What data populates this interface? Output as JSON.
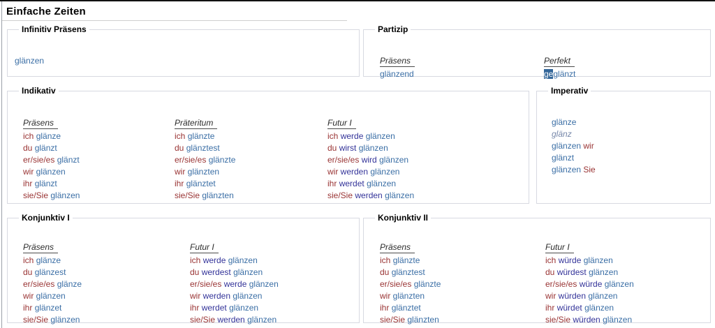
{
  "title": "Einfache Zeiten",
  "colors": {
    "pronoun": "#993333",
    "verb": "#3a6ea5",
    "auxiliary": "#333399",
    "variant": "#7788aa",
    "selection_background": "#336699",
    "selection_text": "#ffffff",
    "header_text": "#2b2b2b",
    "fieldset_border": "#d7d9e1"
  },
  "sections": [
    {
      "id": "infinitiv",
      "legend": "Infinitiv Präsens",
      "columns": [
        {
          "lines": [
            [
              {
                "t": "glänzen",
                "c": "v"
              }
            ]
          ]
        }
      ]
    },
    {
      "id": "partizip",
      "legend": "Partizip",
      "columns": [
        {
          "header": "Präsens",
          "lines": [
            [
              {
                "t": "glänzend",
                "c": "v"
              }
            ]
          ]
        },
        {
          "header": "Perfekt",
          "lines": [
            [
              {
                "t": "ge",
                "c": "sel"
              },
              {
                "t": "glänzt",
                "c": "v",
                "j": true
              }
            ]
          ]
        }
      ]
    },
    {
      "id": "indikativ",
      "legend": "Indikativ",
      "columns": [
        {
          "header": "Präsens",
          "lines": [
            [
              {
                "t": "ich",
                "c": "p"
              },
              {
                "t": "glänze",
                "c": "v"
              }
            ],
            [
              {
                "t": "du",
                "c": "p"
              },
              {
                "t": "glänzt",
                "c": "v"
              }
            ],
            [
              {
                "t": "er/sie/es",
                "c": "p"
              },
              {
                "t": "glänzt",
                "c": "v"
              }
            ],
            [
              {
                "t": "wir",
                "c": "p"
              },
              {
                "t": "glänzen",
                "c": "v"
              }
            ],
            [
              {
                "t": "ihr",
                "c": "p"
              },
              {
                "t": "glänzt",
                "c": "v"
              }
            ],
            [
              {
                "t": "sie/Sie",
                "c": "p"
              },
              {
                "t": "glänzen",
                "c": "v"
              }
            ]
          ]
        },
        {
          "header": "Präteritum",
          "lines": [
            [
              {
                "t": "ich",
                "c": "p"
              },
              {
                "t": "glänzte",
                "c": "v"
              }
            ],
            [
              {
                "t": "du",
                "c": "p"
              },
              {
                "t": "glänztest",
                "c": "v"
              }
            ],
            [
              {
                "t": "er/sie/es",
                "c": "p"
              },
              {
                "t": "glänzte",
                "c": "v"
              }
            ],
            [
              {
                "t": "wir",
                "c": "p"
              },
              {
                "t": "glänzten",
                "c": "v"
              }
            ],
            [
              {
                "t": "ihr",
                "c": "p"
              },
              {
                "t": "glänztet",
                "c": "v"
              }
            ],
            [
              {
                "t": "sie/Sie",
                "c": "p"
              },
              {
                "t": "glänzten",
                "c": "v"
              }
            ]
          ]
        },
        {
          "header": "Futur I",
          "lines": [
            [
              {
                "t": "ich",
                "c": "p"
              },
              {
                "t": "werde",
                "c": "a"
              },
              {
                "t": "glänzen",
                "c": "v"
              }
            ],
            [
              {
                "t": "du",
                "c": "p"
              },
              {
                "t": "wirst",
                "c": "a"
              },
              {
                "t": "glänzen",
                "c": "v"
              }
            ],
            [
              {
                "t": "er/sie/es",
                "c": "p"
              },
              {
                "t": "wird",
                "c": "a"
              },
              {
                "t": "glänzen",
                "c": "v"
              }
            ],
            [
              {
                "t": "wir",
                "c": "p"
              },
              {
                "t": "werden",
                "c": "a"
              },
              {
                "t": "glänzen",
                "c": "v"
              }
            ],
            [
              {
                "t": "ihr",
                "c": "p"
              },
              {
                "t": "werdet",
                "c": "a"
              },
              {
                "t": "glänzen",
                "c": "v"
              }
            ],
            [
              {
                "t": "sie/Sie",
                "c": "p"
              },
              {
                "t": "werden",
                "c": "a"
              },
              {
                "t": "glänzen",
                "c": "v"
              }
            ]
          ]
        }
      ]
    },
    {
      "id": "imperativ",
      "legend": "Imperativ",
      "columns": [
        {
          "lines": [
            [
              {
                "t": "glänze",
                "c": "v"
              }
            ],
            [
              {
                "t": "glänz",
                "c": "vi"
              }
            ],
            [
              {
                "t": "glänzen",
                "c": "v"
              },
              {
                "t": "wir",
                "c": "p"
              }
            ],
            [
              {
                "t": "glänzt",
                "c": "v"
              }
            ],
            [
              {
                "t": "glänzen",
                "c": "v"
              },
              {
                "t": "Sie",
                "c": "p"
              }
            ]
          ]
        }
      ]
    },
    {
      "id": "konjunktiv-i",
      "legend": "Konjunktiv I",
      "columns": [
        {
          "header": "Präsens",
          "lines": [
            [
              {
                "t": "ich",
                "c": "p"
              },
              {
                "t": "glänze",
                "c": "v"
              }
            ],
            [
              {
                "t": "du",
                "c": "p"
              },
              {
                "t": "glänzest",
                "c": "v"
              }
            ],
            [
              {
                "t": "er/sie/es",
                "c": "p"
              },
              {
                "t": "glänze",
                "c": "v"
              }
            ],
            [
              {
                "t": "wir",
                "c": "p"
              },
              {
                "t": "glänzen",
                "c": "v"
              }
            ],
            [
              {
                "t": "ihr",
                "c": "p"
              },
              {
                "t": "glänzet",
                "c": "v"
              }
            ],
            [
              {
                "t": "sie/Sie",
                "c": "p"
              },
              {
                "t": "glänzen",
                "c": "v"
              }
            ]
          ]
        },
        {
          "header": "Futur I",
          "lines": [
            [
              {
                "t": "ich",
                "c": "p"
              },
              {
                "t": "werde",
                "c": "a"
              },
              {
                "t": "glänzen",
                "c": "v"
              }
            ],
            [
              {
                "t": "du",
                "c": "p"
              },
              {
                "t": "werdest",
                "c": "a"
              },
              {
                "t": "glänzen",
                "c": "v"
              }
            ],
            [
              {
                "t": "er/sie/es",
                "c": "p"
              },
              {
                "t": "werde",
                "c": "a"
              },
              {
                "t": "glänzen",
                "c": "v"
              }
            ],
            [
              {
                "t": "wir",
                "c": "p"
              },
              {
                "t": "werden",
                "c": "a"
              },
              {
                "t": "glänzen",
                "c": "v"
              }
            ],
            [
              {
                "t": "ihr",
                "c": "p"
              },
              {
                "t": "werdet",
                "c": "a"
              },
              {
                "t": "glänzen",
                "c": "v"
              }
            ],
            [
              {
                "t": "sie/Sie",
                "c": "p"
              },
              {
                "t": "werden",
                "c": "a"
              },
              {
                "t": "glänzen",
                "c": "v"
              }
            ]
          ]
        }
      ]
    },
    {
      "id": "konjunktiv-ii",
      "legend": "Konjunktiv II",
      "columns": [
        {
          "header": "Präsens",
          "lines": [
            [
              {
                "t": "ich",
                "c": "p"
              },
              {
                "t": "glänzte",
                "c": "v"
              }
            ],
            [
              {
                "t": "du",
                "c": "p"
              },
              {
                "t": "glänztest",
                "c": "v"
              }
            ],
            [
              {
                "t": "er/sie/es",
                "c": "p"
              },
              {
                "t": "glänzte",
                "c": "v"
              }
            ],
            [
              {
                "t": "wir",
                "c": "p"
              },
              {
                "t": "glänzten",
                "c": "v"
              }
            ],
            [
              {
                "t": "ihr",
                "c": "p"
              },
              {
                "t": "glänztet",
                "c": "v"
              }
            ],
            [
              {
                "t": "sie/Sie",
                "c": "p"
              },
              {
                "t": "glänzten",
                "c": "v"
              }
            ]
          ]
        },
        {
          "header": "Futur I",
          "lines": [
            [
              {
                "t": "ich",
                "c": "p"
              },
              {
                "t": "würde",
                "c": "a"
              },
              {
                "t": "glänzen",
                "c": "v"
              }
            ],
            [
              {
                "t": "du",
                "c": "p"
              },
              {
                "t": "würdest",
                "c": "a"
              },
              {
                "t": "glänzen",
                "c": "v"
              }
            ],
            [
              {
                "t": "er/sie/es",
                "c": "p"
              },
              {
                "t": "würde",
                "c": "a"
              },
              {
                "t": "glänzen",
                "c": "v"
              }
            ],
            [
              {
                "t": "wir",
                "c": "p"
              },
              {
                "t": "würden",
                "c": "a"
              },
              {
                "t": "glänzen",
                "c": "v"
              }
            ],
            [
              {
                "t": "ihr",
                "c": "p"
              },
              {
                "t": "würdet",
                "c": "a"
              },
              {
                "t": "glänzen",
                "c": "v"
              }
            ],
            [
              {
                "t": "sie/Sie",
                "c": "p"
              },
              {
                "t": "würden",
                "c": "a"
              },
              {
                "t": "glänzen",
                "c": "v"
              }
            ]
          ]
        }
      ]
    }
  ]
}
